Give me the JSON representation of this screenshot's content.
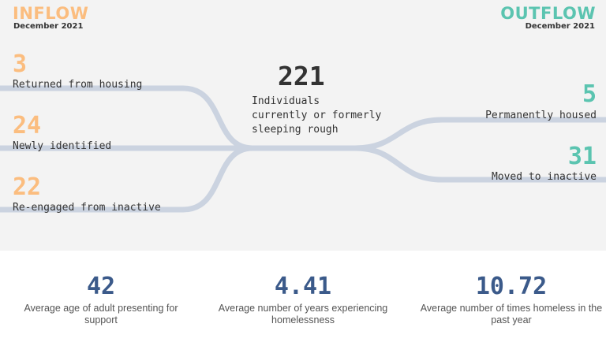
{
  "colors": {
    "inflow": "#fbbd7f",
    "outflow": "#5bc4b0",
    "flow_line": "#cbd3e0",
    "stat_number": "#3b5a8a",
    "top_background": "#f3f3f3"
  },
  "inflow": {
    "title": "INFLOW",
    "period": "December 2021",
    "items": [
      {
        "value": "3",
        "label": "Returned from housing"
      },
      {
        "value": "24",
        "label": "Newly identified"
      },
      {
        "value": "22",
        "label": "Re-engaged from inactive"
      }
    ]
  },
  "center": {
    "value": "221",
    "label": "Individuals\ncurrently or formerly\nsleeping rough"
  },
  "outflow": {
    "title": "OUTFLOW",
    "period": "December 2021",
    "items": [
      {
        "value": "5",
        "label": "Permanently housed"
      },
      {
        "value": "31",
        "label": "Moved to inactive"
      }
    ]
  },
  "stats": [
    {
      "value": "42",
      "label": "Average age of adult presenting for support"
    },
    {
      "value": "4.41",
      "label": "Average number of years experiencing homelessness"
    },
    {
      "value": "10.72",
      "label": "Average number of times homeless in the past year"
    }
  ]
}
